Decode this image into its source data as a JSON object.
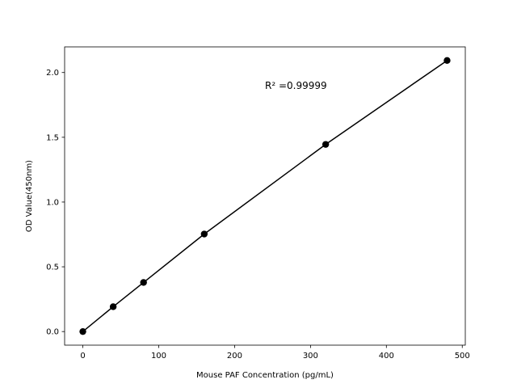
{
  "chart_data": {
    "type": "line",
    "title": "",
    "xlabel": "Mouse PAF Concentration (pg/mL)",
    "ylabel": "OD Value(450nm)",
    "xlim": [
      -24,
      504
    ],
    "ylim": [
      -0.105,
      2.198
    ],
    "xticks": [
      0,
      100,
      200,
      300,
      400,
      500
    ],
    "yticks": [
      0.0,
      0.5,
      1.0,
      1.5,
      2.0
    ],
    "xtick_labels": [
      "0",
      "100",
      "200",
      "300",
      "400",
      "500"
    ],
    "ytick_labels": [
      "0.0",
      "0.5",
      "1.0",
      "1.5",
      "2.0"
    ],
    "grid": false,
    "series": [
      {
        "x": [
          0,
          40,
          80,
          160,
          320,
          480
        ],
        "y": [
          0.0,
          0.192,
          0.379,
          0.753,
          1.445,
          2.093
        ],
        "color": "#000000",
        "marker": "circle"
      }
    ],
    "annotation": {
      "text": "R² =0.99999",
      "x": 240,
      "y": 1.88
    }
  }
}
